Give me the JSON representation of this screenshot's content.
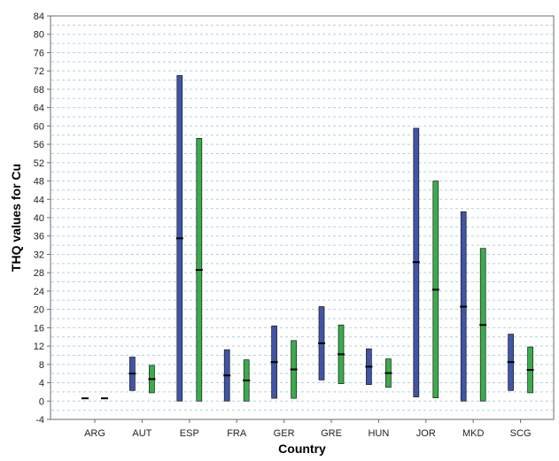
{
  "chart_data": {
    "type": "bar",
    "xlabel": "Country",
    "ylabel": "THQ values for Cu",
    "ylim": [
      -4,
      84
    ],
    "yticks": [
      -4,
      0,
      4,
      8,
      12,
      16,
      20,
      24,
      28,
      32,
      36,
      40,
      44,
      48,
      52,
      56,
      60,
      64,
      68,
      72,
      76,
      80,
      84
    ],
    "categories": [
      "ARG",
      "AUT",
      "ESP",
      "FRA",
      "GER",
      "GRE",
      "HUN",
      "JOR",
      "MKD",
      "SCG"
    ],
    "grid": true,
    "legend": "none",
    "series": [
      {
        "color": "#4054a8",
        "ranges": [
          {
            "low": 0.6,
            "mid": 0.6,
            "high": 0.6
          },
          {
            "low": 2.3,
            "mid": 6.0,
            "high": 9.6
          },
          {
            "low": 0.0,
            "mid": 35.5,
            "high": 71.0
          },
          {
            "low": 0.0,
            "mid": 5.6,
            "high": 11.2
          },
          {
            "low": 0.6,
            "mid": 8.5,
            "high": 16.4
          },
          {
            "low": 4.6,
            "mid": 12.6,
            "high": 20.6
          },
          {
            "low": 3.6,
            "mid": 7.5,
            "high": 11.4
          },
          {
            "low": 0.9,
            "mid": 30.3,
            "high": 59.5
          },
          {
            "low": 0.0,
            "mid": 20.6,
            "high": 41.3
          },
          {
            "low": 2.3,
            "mid": 8.5,
            "high": 14.6
          }
        ]
      },
      {
        "color": "#3aac4c",
        "ranges": [
          {
            "low": 0.6,
            "mid": 0.6,
            "high": 0.6
          },
          {
            "low": 1.8,
            "mid": 4.8,
            "high": 7.8
          },
          {
            "low": 0.0,
            "mid": 28.6,
            "high": 57.3
          },
          {
            "low": 0.0,
            "mid": 4.5,
            "high": 9.0
          },
          {
            "low": 0.6,
            "mid": 6.9,
            "high": 13.2
          },
          {
            "low": 3.8,
            "mid": 10.2,
            "high": 16.6
          },
          {
            "low": 3.0,
            "mid": 6.1,
            "high": 9.2
          },
          {
            "low": 0.7,
            "mid": 24.3,
            "high": 48.0
          },
          {
            "low": 0.0,
            "mid": 16.6,
            "high": 33.3
          },
          {
            "low": 1.8,
            "mid": 6.8,
            "high": 11.8
          }
        ]
      }
    ]
  }
}
